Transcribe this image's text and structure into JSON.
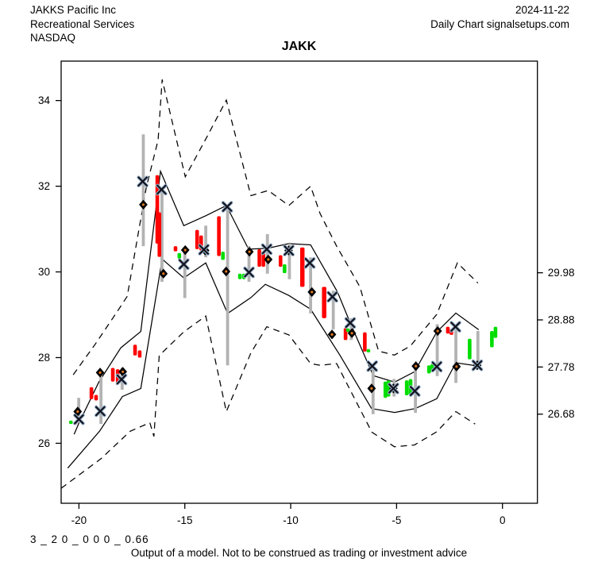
{
  "header": {
    "company": "JAKKS Pacific Inc",
    "sector": "Recreational Services",
    "exchange": "NASDAQ",
    "date": "2024-11-22",
    "source": "Daily Chart signalsetups.com"
  },
  "title": "JAKK",
  "footer": {
    "model_code": "3 _ 2 0 _ 0 0 0 _ 0.66",
    "disclaimer": "Output of a model. Not to be construed as trading or investment advice"
  },
  "chart_data": {
    "type": "candlestick",
    "title": "JAKK",
    "xlabel": "",
    "ylabel": "",
    "grid": false,
    "x_axis": {
      "ticks": [
        -20,
        -15,
        -10,
        -5,
        0
      ],
      "range": [
        -20.84,
        1.65
      ]
    },
    "y_axis": {
      "ticks": [
        26,
        28,
        30,
        32,
        34
      ],
      "range": [
        24.6,
        34.92
      ]
    },
    "y_axis_right": {
      "tick_values": [
        29.98,
        28.88,
        27.78,
        26.68
      ],
      "tick_labels": [
        "29.98",
        "28.88",
        "27.78",
        "26.68"
      ]
    },
    "colors": {
      "up": "#00dd00",
      "down": "#ff0000",
      "range": "#b3b3b3",
      "band": "#000000",
      "x": "#14141e",
      "x_halo": "#9db8d2",
      "diamond": "#000000",
      "diamond_dot": "#e07820"
    },
    "candles": [
      [
        -20.38,
        26.45,
        26.53,
        "g"
      ],
      [
        -20.16,
        26.44,
        26.51,
        "r"
      ],
      [
        -19.41,
        27.03,
        27.31,
        "r"
      ],
      [
        -19.19,
        27.0,
        27.13,
        "r"
      ],
      [
        -18.4,
        27.44,
        27.76,
        "r"
      ],
      [
        -18.17,
        27.41,
        27.73,
        "r"
      ],
      [
        -17.35,
        28.05,
        28.3,
        "r"
      ],
      [
        -17.13,
        28.0,
        28.17,
        "r"
      ],
      [
        -16.3,
        30.66,
        32.26,
        "r"
      ],
      [
        -16.2,
        30.35,
        31.39,
        "r"
      ],
      [
        -15.44,
        30.48,
        30.6,
        "r"
      ],
      [
        -15.26,
        30.31,
        30.44,
        "g"
      ],
      [
        -14.42,
        30.53,
        30.98,
        "r"
      ],
      [
        -14.23,
        30.5,
        30.85,
        "r"
      ],
      [
        -13.39,
        30.37,
        31.3,
        "r"
      ],
      [
        -13.2,
        30.28,
        30.47,
        "g"
      ],
      [
        -12.4,
        29.83,
        29.96,
        "g"
      ],
      [
        -12.21,
        29.83,
        29.96,
        "g"
      ],
      [
        -11.48,
        30.12,
        30.53,
        "r"
      ],
      [
        -11.29,
        30.12,
        30.44,
        "r"
      ],
      [
        -10.48,
        30.12,
        30.39,
        "r"
      ],
      [
        -10.29,
        29.97,
        30.18,
        "g"
      ],
      [
        -9.45,
        29.65,
        30.57,
        "r",
        5.5
      ],
      [
        -8.42,
        28.92,
        29.65,
        "r",
        5.5
      ],
      [
        -7.41,
        28.41,
        28.69,
        "r"
      ],
      [
        -7.3,
        28.6,
        28.68,
        "g"
      ],
      [
        -6.5,
        28.14,
        28.59,
        "r"
      ],
      [
        -6.33,
        28.12,
        28.2,
        "g"
      ],
      [
        -5.53,
        27.06,
        27.44,
        "g"
      ],
      [
        -5.38,
        27.09,
        27.47,
        "g"
      ],
      [
        -4.52,
        27.12,
        27.47,
        "g"
      ],
      [
        -4.34,
        27.13,
        27.5,
        "g"
      ],
      [
        -3.47,
        27.63,
        27.82,
        "g"
      ],
      [
        -3.31,
        27.66,
        27.85,
        "g"
      ],
      [
        -2.58,
        28.56,
        28.72,
        "r"
      ],
      [
        -2.41,
        28.53,
        28.67,
        "r"
      ],
      [
        -1.55,
        27.96,
        28.44,
        "g"
      ],
      [
        -0.5,
        28.24,
        28.62,
        "g"
      ],
      [
        -0.33,
        28.46,
        28.72,
        "g"
      ]
    ],
    "range_bars": [
      [
        -20.01,
        26.48,
        27.06
      ],
      [
        -18.96,
        26.45,
        27.66
      ],
      [
        -17.96,
        27.25,
        27.76
      ],
      [
        -16.96,
        30.6,
        33.21
      ],
      [
        -16.08,
        29.77,
        31.91
      ],
      [
        -15.0,
        29.39,
        30.53
      ],
      [
        -14.01,
        30.34,
        31.08
      ],
      [
        -12.98,
        27.82,
        31.55
      ],
      [
        -11.97,
        29.77,
        30.6
      ],
      [
        -11.1,
        29.96,
        30.88
      ],
      [
        -10.06,
        29.83,
        30.66
      ],
      [
        -9.06,
        29.03,
        30.34
      ],
      [
        -7.99,
        28.66,
        29.56
      ],
      [
        -7.14,
        28.41,
        28.92
      ],
      [
        -6.11,
        26.68,
        27.82
      ],
      [
        -5.12,
        27.09,
        27.5
      ],
      [
        -4.11,
        26.71,
        27.82
      ],
      [
        -3.08,
        27.57,
        28.78
      ],
      [
        -2.2,
        27.41,
        28.65
      ],
      [
        -1.16,
        27.82,
        28.62
      ]
    ],
    "x_markers": [
      [
        -20.0,
        26.56
      ],
      [
        -18.99,
        26.75
      ],
      [
        -17.99,
        27.49
      ],
      [
        -16.99,
        32.11
      ],
      [
        -16.1,
        31.92
      ],
      [
        -15.05,
        30.18
      ],
      [
        -14.1,
        30.52
      ],
      [
        -13.0,
        31.52
      ],
      [
        -11.97,
        29.99
      ],
      [
        -11.13,
        30.53
      ],
      [
        -10.09,
        30.5
      ],
      [
        -9.1,
        30.21
      ],
      [
        -8.03,
        29.42
      ],
      [
        -7.19,
        28.81
      ],
      [
        -6.15,
        27.8
      ],
      [
        -5.15,
        27.28
      ],
      [
        -4.14,
        27.22
      ],
      [
        -3.1,
        27.79
      ],
      [
        -2.22,
        28.72
      ],
      [
        -1.19,
        27.82
      ]
    ],
    "diamond_markers": [
      [
        -20.06,
        26.74
      ],
      [
        -19.0,
        27.65
      ],
      [
        -17.93,
        27.67
      ],
      [
        -16.96,
        31.57
      ],
      [
        -16.01,
        29.96
      ],
      [
        -14.98,
        30.51
      ],
      [
        -14.04,
        30.5
      ],
      [
        -13.05,
        30.01
      ],
      [
        -11.95,
        30.47
      ],
      [
        -11.06,
        30.29
      ],
      [
        -10.1,
        30.5
      ],
      [
        -9.0,
        29.53
      ],
      [
        -8.05,
        28.54
      ],
      [
        -7.11,
        28.57
      ],
      [
        -6.18,
        27.28
      ],
      [
        -5.15,
        27.28
      ],
      [
        -4.09,
        27.8
      ],
      [
        -3.06,
        28.62
      ],
      [
        -2.17,
        27.79
      ],
      [
        -1.19,
        27.82
      ]
    ],
    "bands": {
      "solid_upper": [
        [
          -20.23,
          26.21
        ],
        [
          -20.01,
          26.46
        ],
        [
          -19.07,
          27.42
        ],
        [
          -18.02,
          28.23
        ],
        [
          -17.08,
          28.61
        ],
        [
          -16.15,
          32.35
        ],
        [
          -15.05,
          31.08
        ],
        [
          -14.01,
          31.31
        ],
        [
          -13.04,
          31.55
        ],
        [
          -11.99,
          30.53
        ],
        [
          -11.1,
          30.55
        ],
        [
          -10.09,
          30.66
        ],
        [
          -9.06,
          30.63
        ],
        [
          -7.79,
          29.53
        ],
        [
          -7.23,
          28.86
        ],
        [
          -6.1,
          27.58
        ],
        [
          -5.09,
          27.43
        ],
        [
          -4.15,
          27.67
        ],
        [
          -3.1,
          28.6
        ],
        [
          -2.2,
          29.04
        ],
        [
          -1.12,
          28.65
        ]
      ],
      "solid_lower": [
        [
          -20.53,
          25.42
        ],
        [
          -19.03,
          26.28
        ],
        [
          -17.95,
          27.09
        ],
        [
          -17.08,
          27.28
        ],
        [
          -16.07,
          30.3
        ],
        [
          -15.05,
          29.86
        ],
        [
          -14.01,
          30.21
        ],
        [
          -12.98,
          29.03
        ],
        [
          -11.88,
          29.4
        ],
        [
          -11.2,
          29.71
        ],
        [
          -10.09,
          29.45
        ],
        [
          -9.06,
          29.13
        ],
        [
          -7.68,
          28.06
        ],
        [
          -6.18,
          26.81
        ],
        [
          -5.09,
          26.72
        ],
        [
          -4.12,
          26.81
        ],
        [
          -3.1,
          27.04
        ],
        [
          -2.2,
          27.88
        ],
        [
          -1.12,
          27.8
        ]
      ],
      "dashed_upper": [
        [
          -20.27,
          27.6
        ],
        [
          -19.22,
          28.32
        ],
        [
          -18.21,
          29.06
        ],
        [
          -17.72,
          29.43
        ],
        [
          -16.82,
          31.97
        ],
        [
          -16.26,
          33.08
        ],
        [
          -16.07,
          34.49
        ],
        [
          -14.98,
          32.22
        ],
        [
          -14.01,
          33.1
        ],
        [
          -13.04,
          34.01
        ],
        [
          -11.88,
          31.78
        ],
        [
          -11.06,
          31.9
        ],
        [
          -10.09,
          31.55
        ],
        [
          -9.06,
          32.0
        ],
        [
          -8.61,
          31.36
        ],
        [
          -7.83,
          30.6
        ],
        [
          -7.41,
          30.24
        ],
        [
          -6.73,
          29.65
        ],
        [
          -5.85,
          28.15
        ],
        [
          -5.1,
          28.06
        ],
        [
          -4.35,
          28.27
        ],
        [
          -3.1,
          29.01
        ],
        [
          -2.13,
          30.21
        ],
        [
          -1.16,
          29.74
        ]
      ],
      "dashed_lower": [
        [
          -20.84,
          24.95
        ],
        [
          -18.96,
          25.64
        ],
        [
          -17.58,
          26.28
        ],
        [
          -16.65,
          26.48
        ],
        [
          -16.46,
          26.16
        ],
        [
          -16.21,
          28.05
        ],
        [
          -15.05,
          28.6
        ],
        [
          -14.01,
          28.97
        ],
        [
          -13.04,
          26.74
        ],
        [
          -11.88,
          28.11
        ],
        [
          -11.13,
          28.72
        ],
        [
          -10.09,
          28.53
        ],
        [
          -9.06,
          27.86
        ],
        [
          -8.61,
          27.82
        ],
        [
          -7.83,
          27.86
        ],
        [
          -7.3,
          27.35
        ],
        [
          -6.17,
          26.26
        ],
        [
          -5.1,
          25.92
        ],
        [
          -4.16,
          25.96
        ],
        [
          -3.1,
          26.27
        ],
        [
          -2.2,
          26.74
        ],
        [
          -1.29,
          26.45
        ]
      ]
    }
  }
}
